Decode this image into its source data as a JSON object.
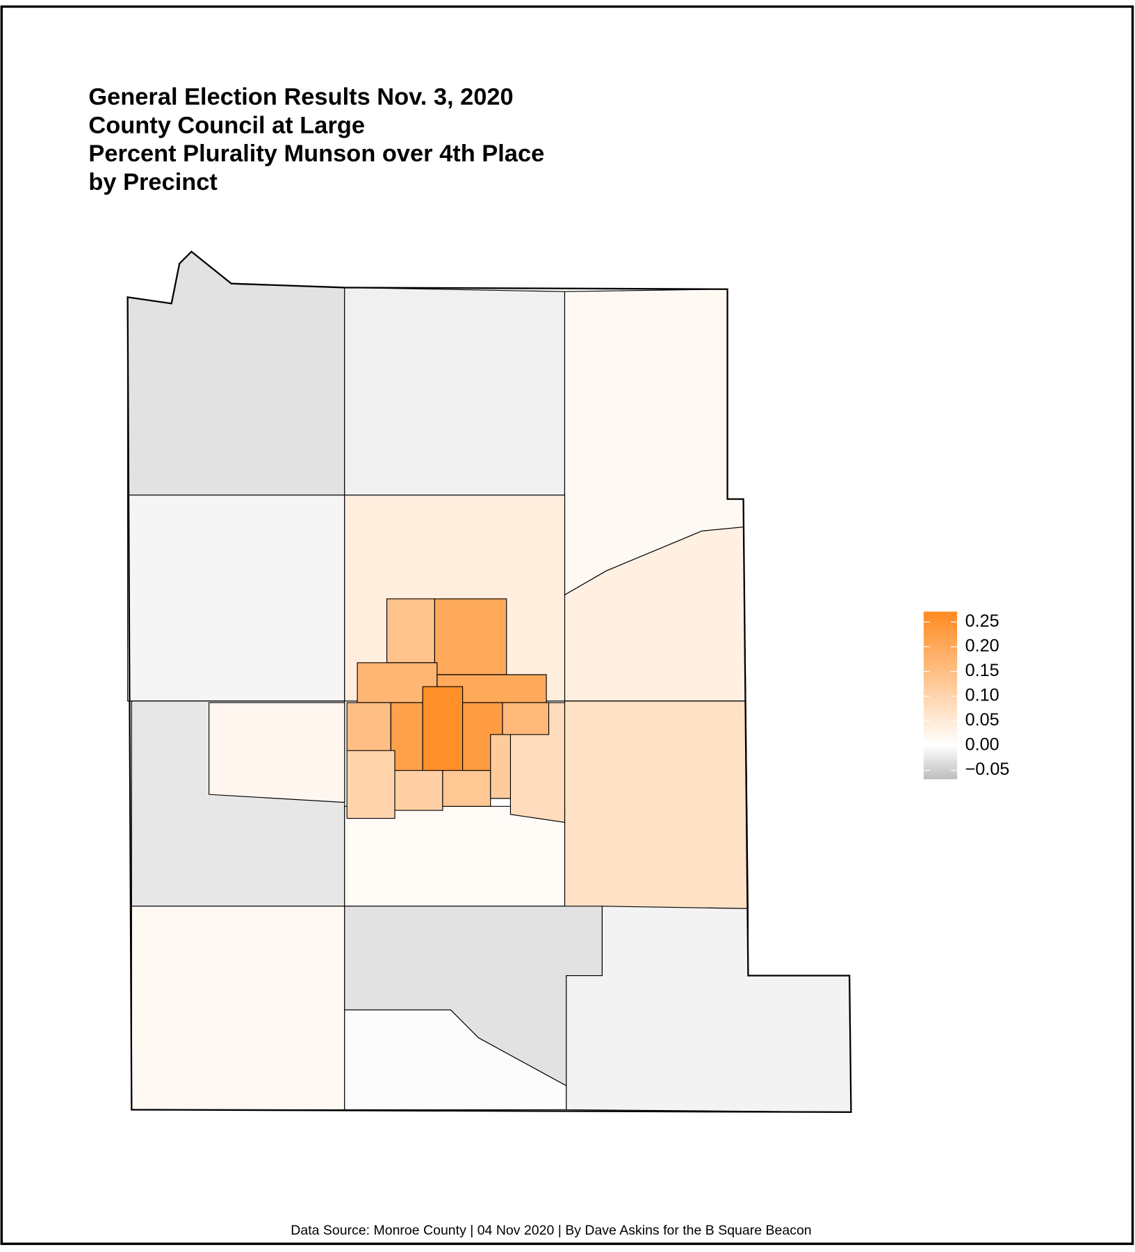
{
  "title": [
    "General Election Results Nov. 3, 2020",
    "County Council at Large",
    "Percent Plurality Munson over 4th Place",
    "by Precinct"
  ],
  "source": "Data Source: Monroe County | 04 Nov 2020 | By Dave Askins for the B Square Beacon",
  "color_scale": {
    "limits": [
      -0.068,
      0.271
    ],
    "low_color": "#bdbdbd",
    "mid_color": "#ffffff",
    "high_color": "#ff8a20",
    "ticks": [
      {
        "value": 0.25,
        "label": "0.25"
      },
      {
        "value": 0.2,
        "label": "0.20"
      },
      {
        "value": 0.15,
        "label": "0.15"
      },
      {
        "value": 0.1,
        "label": "0.10"
      },
      {
        "value": 0.05,
        "label": "0.05"
      },
      {
        "value": 0,
        "label": "0.00"
      },
      {
        "value": -0.05,
        "label": "−0.05"
      }
    ]
  },
  "precinct_values": [
    -0.03,
    -0.015,
    0.015,
    0.035,
    0.07,
    -0.01,
    -0.025,
    0.04,
    0.01,
    0.015,
    -0.03,
    -0.003,
    -0.012,
    0.02,
    0.08,
    0.14,
    0.2,
    0.17,
    0.2,
    0.15,
    0.22,
    0.26,
    0.23,
    0.16,
    0.1,
    0.11,
    0.13,
    0.12
  ]
}
